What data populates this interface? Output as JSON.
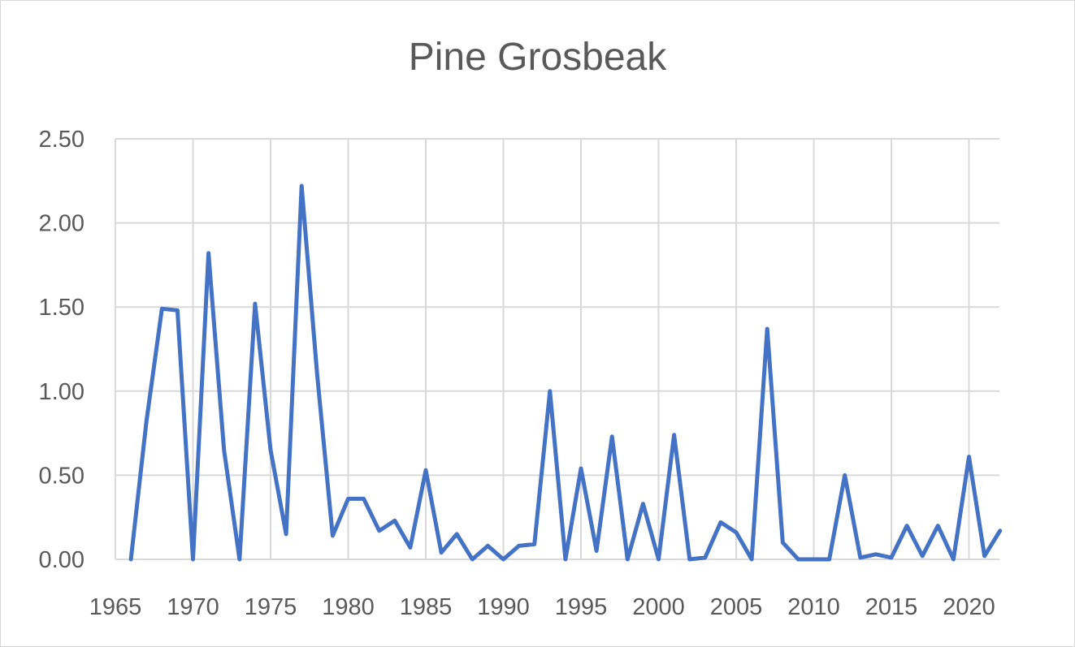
{
  "chart_data": {
    "type": "line",
    "title": "Pine Grosbeak",
    "xlabel": "",
    "ylabel": "",
    "xlim": [
      1965,
      2022
    ],
    "ylim": [
      0,
      2.5
    ],
    "x_ticks": [
      1965,
      1970,
      1975,
      1980,
      1985,
      1990,
      1995,
      2000,
      2005,
      2010,
      2015,
      2020
    ],
    "y_ticks": [
      "0.00",
      "0.50",
      "1.00",
      "1.50",
      "2.00",
      "2.50"
    ],
    "grid": true,
    "legend": "none",
    "line_color": "#4472c4",
    "series": [
      {
        "x": [
          1966,
          1967,
          1968,
          1969,
          1970,
          1971,
          1972,
          1973,
          1974,
          1975,
          1976,
          1977,
          1978,
          1979,
          1980,
          1981,
          1982,
          1983,
          1984,
          1985,
          1986,
          1987,
          1988,
          1989,
          1990,
          1991,
          1992,
          1993,
          1994,
          1995,
          1996,
          1997,
          1998,
          1999,
          2000,
          2001,
          2002,
          2003,
          2004,
          2005,
          2006,
          2007,
          2008,
          2009,
          2010,
          2011,
          2012,
          2013,
          2014,
          2015,
          2016,
          2017,
          2018,
          2019,
          2020,
          2021,
          2022
        ],
        "values": [
          0.0,
          0.82,
          1.49,
          1.48,
          0.0,
          1.82,
          0.65,
          0.0,
          1.52,
          0.65,
          0.15,
          2.22,
          1.1,
          0.14,
          0.36,
          0.36,
          0.17,
          0.23,
          0.07,
          0.53,
          0.04,
          0.15,
          0.0,
          0.08,
          0.0,
          0.08,
          0.09,
          1.0,
          0.0,
          0.54,
          0.05,
          0.73,
          0.0,
          0.33,
          0.0,
          0.74,
          0.0,
          0.01,
          0.22,
          0.16,
          0.0,
          1.37,
          0.1,
          0.0,
          0.0,
          0.0,
          0.5,
          0.01,
          0.03,
          0.01,
          0.2,
          0.02,
          0.2,
          0.0,
          0.61,
          0.02,
          0.17
        ]
      }
    ]
  }
}
